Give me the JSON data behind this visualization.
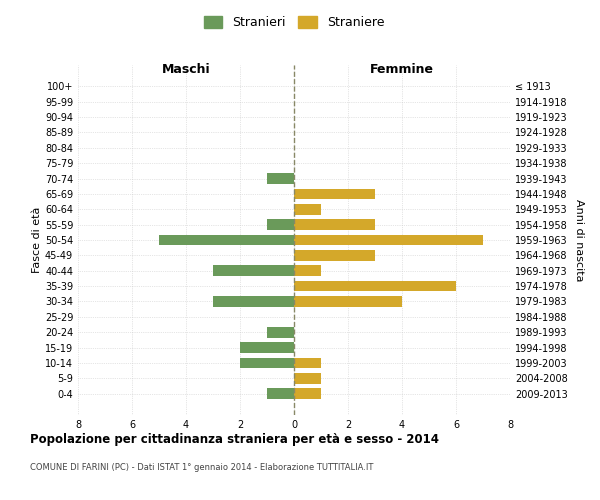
{
  "age_groups": [
    "100+",
    "95-99",
    "90-94",
    "85-89",
    "80-84",
    "75-79",
    "70-74",
    "65-69",
    "60-64",
    "55-59",
    "50-54",
    "45-49",
    "40-44",
    "35-39",
    "30-34",
    "25-29",
    "20-24",
    "15-19",
    "10-14",
    "5-9",
    "0-4"
  ],
  "birth_years": [
    "≤ 1913",
    "1914-1918",
    "1919-1923",
    "1924-1928",
    "1929-1933",
    "1934-1938",
    "1939-1943",
    "1944-1948",
    "1949-1953",
    "1954-1958",
    "1959-1963",
    "1964-1968",
    "1969-1973",
    "1974-1978",
    "1979-1983",
    "1984-1988",
    "1989-1993",
    "1994-1998",
    "1999-2003",
    "2004-2008",
    "2009-2013"
  ],
  "maschi": [
    0,
    0,
    0,
    0,
    0,
    0,
    1,
    0,
    0,
    1,
    5,
    0,
    3,
    0,
    3,
    0,
    1,
    2,
    2,
    0,
    1
  ],
  "femmine": [
    0,
    0,
    0,
    0,
    0,
    0,
    0,
    3,
    1,
    3,
    7,
    3,
    1,
    6,
    4,
    0,
    0,
    0,
    1,
    1,
    1
  ],
  "maschi_color": "#6a9a5a",
  "femmine_color": "#d4a82a",
  "background_color": "#ffffff",
  "grid_color": "#cccccc",
  "dashed_line_color": "#888866",
  "title": "Popolazione per cittadinanza straniera per età e sesso - 2014",
  "subtitle": "COMUNE DI FARINI (PC) - Dati ISTAT 1° gennaio 2014 - Elaborazione TUTTITALIA.IT",
  "xlabel_left": "Maschi",
  "xlabel_right": "Femmine",
  "ylabel_left": "Fasce di età",
  "ylabel_right": "Anni di nascita",
  "legend_maschi": "Stranieri",
  "legend_femmine": "Straniere",
  "xlim": 8,
  "bar_height": 0.7
}
